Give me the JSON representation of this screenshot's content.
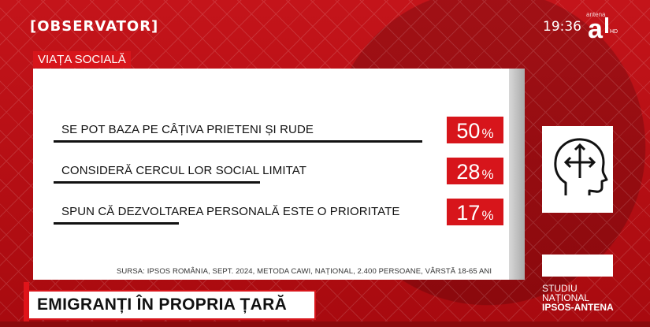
{
  "header": {
    "logo": "[OBSERVATOR]",
    "time": "19:36",
    "channel_top": "antena",
    "channel_icon": "antena-1-hd-logo"
  },
  "section_label": "VIAȚA SOCIALĂ",
  "chart_data": {
    "type": "bar",
    "categories": [
      "SE POT BAZA PE CÂȚIVA PRIETENI ȘI RUDE",
      "CONSIDERĂ CERCUL LOR SOCIAL LIMITAT",
      "SPUN CĂ DEZVOLTAREA PERSONALĂ ESTE O PRIORITATE"
    ],
    "values": [
      50,
      28,
      17
    ],
    "value_labels": [
      "50",
      "28",
      "17"
    ],
    "unit": "%",
    "ylim": [
      0,
      100
    ],
    "bar_color": "#111111",
    "accent": "#d7151b"
  },
  "source": "SURSA: IPSOS ROMÂNIA, SEPT. 2024, METODA CAWI, NAȚIONAL, 2.400 PERSOANE, VÂRSTĂ 18-65 ANI",
  "side": {
    "icon": "head-crossroads-icon",
    "study_line1": "STUDIU",
    "study_line2": "NAȚIONAL",
    "study_line3": "IPSOS-ANTENA"
  },
  "ticker": {
    "headline": "EMIGRANȚI ÎN PROPRIA ȚARĂ"
  }
}
